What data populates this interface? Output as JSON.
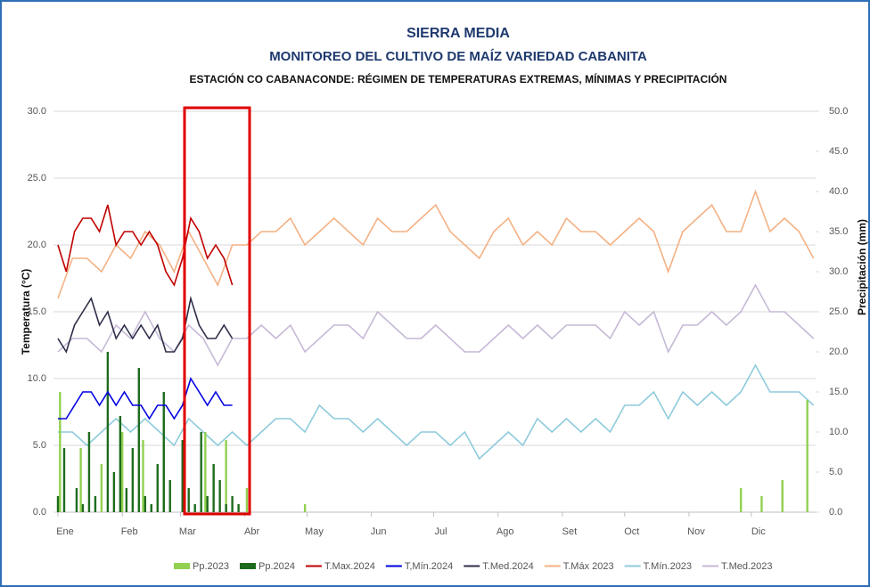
{
  "chart_data": {
    "type": "combo",
    "title": "SIERRA MEDIA",
    "subtitle": "MONITOREO DEL CULTIVO DE MAÍZ VARIEDAD CABANITA",
    "subtitle2": "ESTACIÓN CO CABANACONDE: RÉGIMEN DE TEMPERATURAS EXTREMAS, MÍNIMAS Y PRECIPITACIÓN",
    "y_label": "Temperatura (°C)",
    "y2_label": "Precipitación (mm)",
    "xlim": [
      1,
      366
    ],
    "xticks": [
      {
        "value": 1,
        "label": "Ene"
      },
      {
        "value": 32,
        "label": "Feb"
      },
      {
        "value": 60,
        "label": "Mar"
      },
      {
        "value": 91,
        "label": "Abr"
      },
      {
        "value": 121,
        "label": "May"
      },
      {
        "value": 152,
        "label": "Jun"
      },
      {
        "value": 182,
        "label": "Jul"
      },
      {
        "value": 213,
        "label": "Ago"
      },
      {
        "value": 244,
        "label": "Set"
      },
      {
        "value": 274,
        "label": "Oct"
      },
      {
        "value": 305,
        "label": "Nov"
      },
      {
        "value": 335,
        "label": "Dic"
      }
    ],
    "ylim": [
      0,
      30
    ],
    "yticks": [
      {
        "value": 0,
        "label": "0.0"
      },
      {
        "value": 5,
        "label": "5.0"
      },
      {
        "value": 10,
        "label": "10.0"
      },
      {
        "value": 15,
        "label": "15.0"
      },
      {
        "value": 20,
        "label": "20.0"
      },
      {
        "value": 25,
        "label": "25.0"
      },
      {
        "value": 30,
        "label": "30.0"
      }
    ],
    "y2lim": [
      0,
      50
    ],
    "y2ticks": [
      {
        "value": 0,
        "label": "0.0"
      },
      {
        "value": 5,
        "label": "5.0"
      },
      {
        "value": 10,
        "label": "10.0"
      },
      {
        "value": 15,
        "label": "15.0"
      },
      {
        "value": 20,
        "label": "20.0"
      },
      {
        "value": 25,
        "label": "25.0"
      },
      {
        "value": 30,
        "label": "30.0"
      },
      {
        "value": 35,
        "label": "35.0"
      },
      {
        "value": 40,
        "label": "40.0"
      },
      {
        "value": 45,
        "label": "45.0"
      },
      {
        "value": 50,
        "label": "50.0"
      }
    ],
    "grid": true,
    "series": [
      {
        "name": "Pp.2023",
        "type": "bar",
        "axis": "y2",
        "color": "#92d050",
        "x": [
          2,
          12,
          22,
          32,
          42,
          52,
          62,
          72,
          82,
          92,
          120,
          330,
          340,
          350,
          362
        ],
        "values": [
          15,
          8,
          6,
          10,
          9,
          12,
          7,
          10,
          9,
          3,
          1,
          3,
          2,
          4,
          14
        ]
      },
      {
        "name": "Pp.2024",
        "type": "bar",
        "axis": "y2",
        "color": "#1e6b1e",
        "x": [
          1,
          4,
          7,
          10,
          13,
          16,
          19,
          22,
          25,
          28,
          31,
          34,
          37,
          40,
          43,
          46,
          49,
          52,
          55,
          58,
          61,
          64,
          67,
          70,
          73,
          76,
          79,
          82,
          85,
          88
        ],
        "values": [
          2,
          8,
          0,
          3,
          1,
          10,
          2,
          0,
          20,
          5,
          12,
          3,
          8,
          18,
          2,
          1,
          6,
          15,
          4,
          0,
          9,
          3,
          1,
          10,
          2,
          6,
          4,
          1,
          2,
          1
        ]
      },
      {
        "name": "T.Max.2024",
        "type": "line",
        "color": "#c00000",
        "x": [
          1,
          5,
          9,
          13,
          17,
          21,
          25,
          29,
          33,
          37,
          41,
          45,
          49,
          53,
          57,
          61,
          65,
          69,
          73,
          77,
          81,
          85
        ],
        "values": [
          20,
          18,
          21,
          22,
          22,
          21,
          23,
          20,
          21,
          21,
          20,
          21,
          20,
          18,
          17,
          19,
          22,
          21,
          19,
          20,
          19,
          17
        ]
      },
      {
        "name": "T,Mín.2024",
        "type": "line",
        "color": "#0000e0",
        "x": [
          1,
          5,
          9,
          13,
          17,
          21,
          25,
          29,
          33,
          37,
          41,
          45,
          49,
          53,
          57,
          61,
          65,
          69,
          73,
          77,
          81,
          85
        ],
        "values": [
          7,
          7,
          8,
          9,
          9,
          8,
          9,
          8,
          9,
          8,
          8,
          7,
          8,
          8,
          7,
          8,
          10,
          9,
          8,
          9,
          8,
          8
        ]
      },
      {
        "name": "T.Med.2024",
        "type": "line",
        "color": "#2e2e4a",
        "x": [
          1,
          5,
          9,
          13,
          17,
          21,
          25,
          29,
          33,
          37,
          41,
          45,
          49,
          53,
          57,
          61,
          65,
          69,
          73,
          77,
          81,
          85
        ],
        "values": [
          13,
          12,
          14,
          15,
          16,
          14,
          15,
          13,
          14,
          13,
          14,
          13,
          14,
          12,
          12,
          13,
          16,
          14,
          13,
          13,
          14,
          13
        ]
      },
      {
        "name": "T.Máx 2023",
        "type": "line",
        "color": "#f4b183",
        "x": [
          1,
          8,
          15,
          22,
          29,
          36,
          43,
          50,
          57,
          64,
          71,
          78,
          85,
          92,
          99,
          106,
          113,
          120,
          127,
          134,
          141,
          148,
          155,
          162,
          169,
          176,
          183,
          190,
          197,
          204,
          211,
          218,
          225,
          232,
          239,
          246,
          253,
          260,
          267,
          274,
          281,
          288,
          295,
          302,
          309,
          316,
          323,
          330,
          337,
          344,
          351,
          358,
          365
        ],
        "values": [
          16,
          19,
          19,
          18,
          20,
          19,
          21,
          20,
          18,
          21,
          19,
          17,
          20,
          20,
          21,
          21,
          22,
          20,
          21,
          22,
          21,
          20,
          22,
          21,
          21,
          22,
          23,
          21,
          20,
          19,
          21,
          22,
          20,
          21,
          20,
          22,
          21,
          21,
          20,
          21,
          22,
          21,
          18,
          21,
          22,
          23,
          21,
          21,
          24,
          21,
          22,
          21,
          19
        ]
      },
      {
        "name": "T.Mín.2023",
        "type": "line",
        "color": "#8ecbdc",
        "x": [
          1,
          8,
          15,
          22,
          29,
          36,
          43,
          50,
          57,
          64,
          71,
          78,
          85,
          92,
          99,
          106,
          113,
          120,
          127,
          134,
          141,
          148,
          155,
          162,
          169,
          176,
          183,
          190,
          197,
          204,
          211,
          218,
          225,
          232,
          239,
          246,
          253,
          260,
          267,
          274,
          281,
          288,
          295,
          302,
          309,
          316,
          323,
          330,
          337,
          344,
          351,
          358,
          365
        ],
        "values": [
          6,
          6,
          5,
          6,
          7,
          6,
          7,
          6,
          5,
          7,
          6,
          5,
          6,
          5,
          6,
          7,
          7,
          6,
          8,
          7,
          7,
          6,
          7,
          6,
          5,
          6,
          6,
          5,
          6,
          4,
          5,
          6,
          5,
          7,
          6,
          7,
          6,
          7,
          6,
          8,
          8,
          9,
          7,
          9,
          8,
          9,
          8,
          9,
          11,
          9,
          9,
          9,
          8
        ]
      },
      {
        "name": "T.Med.2023",
        "type": "line",
        "color": "#c6b9d6",
        "x": [
          1,
          8,
          15,
          22,
          29,
          36,
          43,
          50,
          57,
          64,
          71,
          78,
          85,
          92,
          99,
          106,
          113,
          120,
          127,
          134,
          141,
          148,
          155,
          162,
          169,
          176,
          183,
          190,
          197,
          204,
          211,
          218,
          225,
          232,
          239,
          246,
          253,
          260,
          267,
          274,
          281,
          288,
          295,
          302,
          309,
          316,
          323,
          330,
          337,
          344,
          351,
          358,
          365
        ],
        "values": [
          12,
          13,
          13,
          12,
          14,
          13,
          15,
          13,
          12,
          14,
          13,
          11,
          13,
          13,
          14,
          13,
          14,
          12,
          13,
          14,
          14,
          13,
          15,
          14,
          13,
          13,
          14,
          13,
          12,
          12,
          13,
          14,
          13,
          14,
          13,
          14,
          14,
          14,
          13,
          15,
          14,
          15,
          12,
          14,
          14,
          15,
          14,
          15,
          17,
          15,
          15,
          14,
          13
        ]
      }
    ]
  }
}
